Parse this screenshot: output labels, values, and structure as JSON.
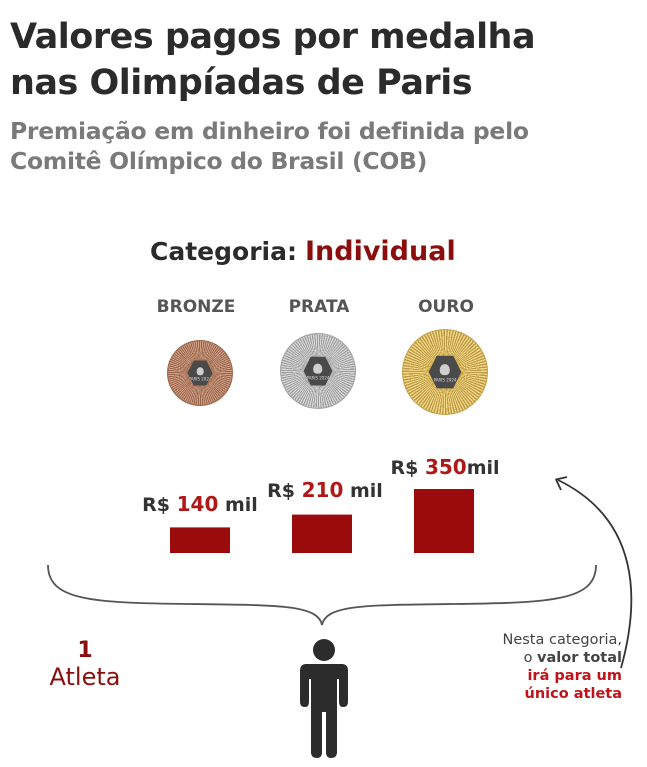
{
  "title": {
    "line1": "Valores pagos por medalha",
    "line2": "nas Olimpíadas de Paris"
  },
  "subtitle": {
    "line1": "Premiação em dinheiro foi definida pelo",
    "line2": "Comitê Olímpico do Brasil (COB)"
  },
  "category": {
    "label": "Categoria:",
    "value": "Individual"
  },
  "medals": [
    {
      "name": "BRONZE",
      "color": "#b07a5e",
      "emblem_text": "PARIS 2024"
    },
    {
      "name": "PRATA",
      "color": "#b8b8b8",
      "emblem_text": "PARIS 2024"
    },
    {
      "name": "OURO",
      "color": "#d6b45a",
      "emblem_text": "PARIS 2024"
    }
  ],
  "chart_data": {
    "type": "bar",
    "title": "Valores pagos por medalha nas Olimpíadas de Paris",
    "categories": [
      "BRONZE",
      "PRATA",
      "OURO"
    ],
    "values": [
      140,
      210,
      350
    ],
    "unit": "mil R$",
    "labels": [
      {
        "prefix": "R$ ",
        "num": "140",
        "suffix": " mil"
      },
      {
        "prefix": "R$ ",
        "num": "210",
        "suffix": " mil"
      },
      {
        "prefix": "R$ ",
        "num": "350",
        "suffix": "mil"
      }
    ],
    "ylim": [
      0,
      350
    ],
    "bar_color": "#9b0b0b",
    "xlabel": "",
    "ylabel": ""
  },
  "athlete": {
    "count": "1",
    "label": "Atleta"
  },
  "note": {
    "part1": "Nesta categoria,",
    "part2": "o ",
    "bold": "valor total",
    "red1": "irá para um",
    "red2": "único atleta"
  },
  "colors": {
    "accent": "#8b0e0e",
    "highlight": "#c0141a",
    "text": "#2b2b2b",
    "subtitle": "#7a7a7a"
  }
}
